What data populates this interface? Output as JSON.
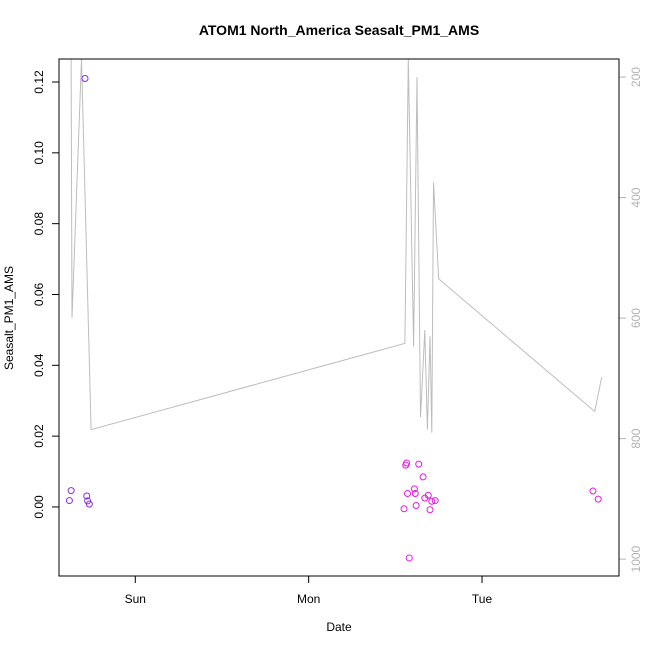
{
  "chart_data": {
    "type": "scatter",
    "title": "ATOM1 North_America Seasalt_PM1_AMS",
    "xlabel": "Date",
    "ylabel": "Seasalt_PM1_AMS",
    "x_ticks": [
      {
        "label": "Sun",
        "t": 1.0
      },
      {
        "label": "Mon",
        "t": 2.0
      },
      {
        "label": "Tue",
        "t": 3.0
      }
    ],
    "x_range": [
      0.56,
      3.79
    ],
    "y_range": [
      -0.0195,
      0.1265
    ],
    "y_ticks": [
      "0.00",
      "0.02",
      "0.04",
      "0.06",
      "0.08",
      "0.10",
      "0.12"
    ],
    "y2_ticks": [
      "200",
      "400",
      "600",
      "800",
      "1000"
    ],
    "y2_range": [
      1028,
      170
    ],
    "y2_reversed": true,
    "grid": false,
    "series": [
      {
        "color": "#8a2be2",
        "marker": "open-circle",
        "points": [
          {
            "x": 0.62,
            "y": 0.0018
          },
          {
            "x": 0.63,
            "y": 0.0046
          },
          {
            "x": 0.71,
            "y": 0.121
          },
          {
            "x": 0.72,
            "y": 0.0031
          },
          {
            "x": 0.725,
            "y": 0.0017
          },
          {
            "x": 0.735,
            "y": 0.0008
          }
        ]
      },
      {
        "color": "#e619e6",
        "marker": "open-circle",
        "points": [
          {
            "x": 2.55,
            "y": -0.0005
          },
          {
            "x": 2.56,
            "y": 0.0118
          },
          {
            "x": 2.565,
            "y": 0.0124
          },
          {
            "x": 2.57,
            "y": 0.0038
          },
          {
            "x": 2.58,
            "y": -0.0144
          },
          {
            "x": 2.61,
            "y": 0.0051
          },
          {
            "x": 2.615,
            "y": 0.0038
          },
          {
            "x": 2.62,
            "y": 0.0004
          },
          {
            "x": 2.635,
            "y": 0.0121
          },
          {
            "x": 2.66,
            "y": 0.0085
          },
          {
            "x": 2.67,
            "y": 0.0025
          },
          {
            "x": 2.69,
            "y": 0.0033
          },
          {
            "x": 2.7,
            "y": -0.0008
          },
          {
            "x": 2.71,
            "y": 0.0016
          },
          {
            "x": 2.73,
            "y": 0.0018
          },
          {
            "x": 3.64,
            "y": 0.0045
          },
          {
            "x": 3.67,
            "y": 0.0022
          }
        ]
      }
    ],
    "pressure_line": {
      "color": "#bdbdbd",
      "axis": "right",
      "points": [
        {
          "x": 0.63,
          "y": 170
        },
        {
          "x": 0.635,
          "y": 600
        },
        {
          "x": 0.69,
          "y": 170
        },
        {
          "x": 0.745,
          "y": 785
        },
        {
          "x": 2.555,
          "y": 642
        },
        {
          "x": 2.575,
          "y": 170
        },
        {
          "x": 2.605,
          "y": 647
        },
        {
          "x": 2.625,
          "y": 200
        },
        {
          "x": 2.645,
          "y": 765
        },
        {
          "x": 2.67,
          "y": 620
        },
        {
          "x": 2.685,
          "y": 785
        },
        {
          "x": 2.7,
          "y": 630
        },
        {
          "x": 2.71,
          "y": 790
        },
        {
          "x": 2.72,
          "y": 375
        },
        {
          "x": 2.75,
          "y": 535
        },
        {
          "x": 3.65,
          "y": 755
        },
        {
          "x": 3.69,
          "y": 698
        }
      ]
    }
  }
}
